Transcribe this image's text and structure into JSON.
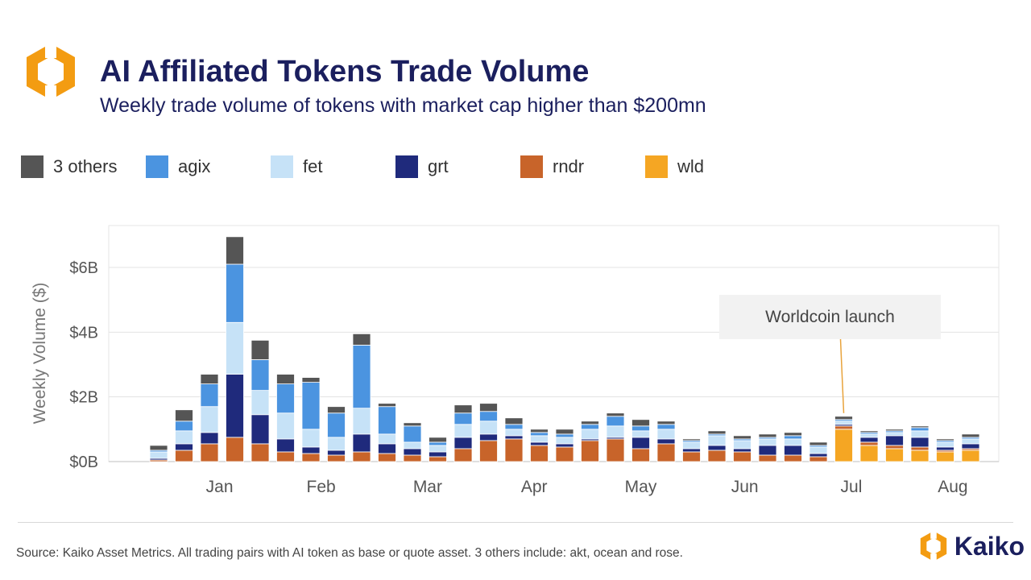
{
  "header": {
    "title": "AI Affiliated Tokens Trade Volume",
    "subtitle": "Weekly trade volume of tokens with market cap higher than $200mn"
  },
  "footer": {
    "source": "Source: Kaiko Asset Metrics. All trading pairs with AI token as base or quote asset. 3 others include: akt, ocean and rose.",
    "brand": "Kaiko"
  },
  "colors": {
    "brand_orange": "#f39c12",
    "brand_navy": "#1b1f5e"
  },
  "chart_data": {
    "type": "bar",
    "stacked": true,
    "title": "AI Affiliated Tokens Trade Volume",
    "subtitle": "Weekly trade volume of tokens with market cap higher than $200mn",
    "ylabel": "Weekly Volume ($)",
    "ylim": [
      0,
      7
    ],
    "yticks": [
      0,
      2,
      4,
      6
    ],
    "ytick_labels": [
      "$0B",
      "$2B",
      "$4B",
      "$6B"
    ],
    "xtick_labels": [
      "Jan",
      "Feb",
      "Mar",
      "Apr",
      "May",
      "Jun",
      "Jul",
      "Aug"
    ],
    "xtick_weeks": [
      3.4,
      7.4,
      11.6,
      15.8,
      20.0,
      24.1,
      28.3,
      32.3
    ],
    "legend_position": "top-left",
    "grid": true,
    "weeks": [
      1,
      2,
      3,
      4,
      5,
      6,
      7,
      8,
      9,
      10,
      11,
      12,
      13,
      14,
      15,
      16,
      17,
      18,
      19,
      20,
      21,
      22,
      23,
      24,
      25,
      26,
      27,
      28,
      29,
      30,
      31,
      32,
      33
    ],
    "series": [
      {
        "name": "wld",
        "color": "#f5a623",
        "values": [
          0,
          0,
          0,
          0,
          0,
          0,
          0,
          0,
          0,
          0,
          0,
          0,
          0,
          0,
          0,
          0,
          0,
          0,
          0,
          0,
          0,
          0,
          0,
          0,
          0,
          0,
          0,
          1.0,
          0.5,
          0.4,
          0.35,
          0.3,
          0.35
        ]
      },
      {
        "name": "rndr",
        "color": "#c8642a",
        "values": [
          0.05,
          0.35,
          0.55,
          0.75,
          0.55,
          0.3,
          0.25,
          0.2,
          0.3,
          0.25,
          0.2,
          0.15,
          0.4,
          0.65,
          0.7,
          0.5,
          0.45,
          0.65,
          0.7,
          0.4,
          0.55,
          0.3,
          0.35,
          0.3,
          0.2,
          0.2,
          0.15,
          0.1,
          0.1,
          0.1,
          0.1,
          0.05,
          0.05
        ]
      },
      {
        "name": "grt",
        "color": "#1f2a7c",
        "values": [
          0.05,
          0.2,
          0.35,
          1.95,
          0.9,
          0.4,
          0.2,
          0.15,
          0.55,
          0.3,
          0.2,
          0.15,
          0.35,
          0.2,
          0.1,
          0.1,
          0.1,
          0.05,
          0.05,
          0.35,
          0.15,
          0.1,
          0.15,
          0.1,
          0.3,
          0.3,
          0.1,
          0.05,
          0.15,
          0.3,
          0.3,
          0.1,
          0.15
        ]
      },
      {
        "name": "fet",
        "color": "#c6e2f7",
        "values": [
          0.2,
          0.4,
          0.8,
          1.6,
          0.75,
          0.8,
          0.55,
          0.4,
          0.8,
          0.3,
          0.2,
          0.2,
          0.4,
          0.4,
          0.2,
          0.2,
          0.2,
          0.3,
          0.35,
          0.2,
          0.3,
          0.2,
          0.3,
          0.25,
          0.2,
          0.2,
          0.2,
          0.1,
          0.1,
          0.1,
          0.2,
          0.15,
          0.15
        ]
      },
      {
        "name": "agix",
        "color": "#4b94e0",
        "values": [
          0.05,
          0.3,
          0.7,
          1.8,
          0.95,
          0.9,
          1.45,
          0.75,
          1.95,
          0.85,
          0.5,
          0.1,
          0.35,
          0.3,
          0.15,
          0.1,
          0.1,
          0.15,
          0.3,
          0.15,
          0.15,
          0.05,
          0.05,
          0.05,
          0.05,
          0.1,
          0.05,
          0.05,
          0.05,
          0.05,
          0.1,
          0.05,
          0.05
        ]
      },
      {
        "name": "3 others",
        "color": "#555555",
        "values": [
          0.15,
          0.35,
          0.3,
          0.85,
          0.6,
          0.3,
          0.15,
          0.2,
          0.35,
          0.1,
          0.1,
          0.15,
          0.25,
          0.25,
          0.2,
          0.1,
          0.15,
          0.1,
          0.1,
          0.2,
          0.1,
          0.05,
          0.1,
          0.1,
          0.1,
          0.1,
          0.1,
          0.1,
          0.05,
          0.05,
          0.05,
          0.05,
          0.1
        ]
      }
    ],
    "legend_order": [
      "3 others",
      "agix",
      "fet",
      "grt",
      "rndr",
      "wld"
    ],
    "annotations": [
      {
        "text": "Worldcoin launch",
        "target_week": 28,
        "target_value": 1.3
      }
    ]
  }
}
